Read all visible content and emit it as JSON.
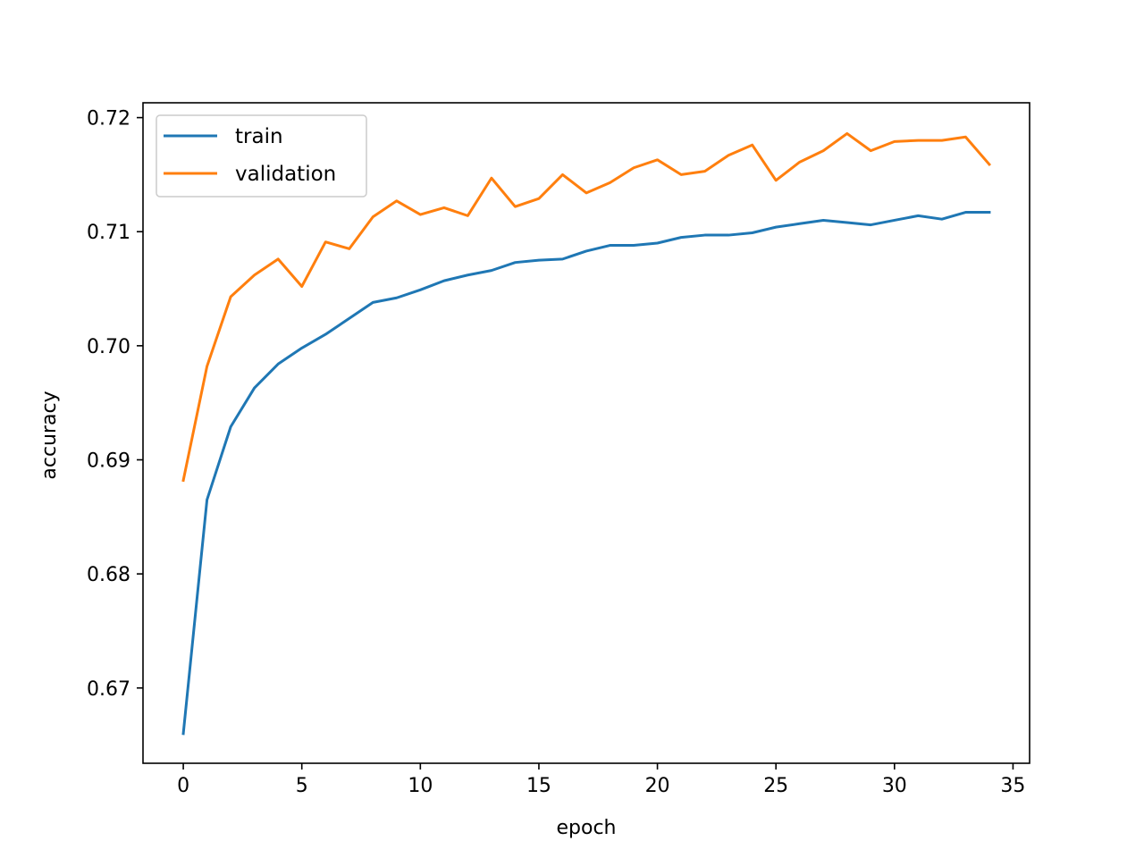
{
  "chart_data": {
    "type": "line",
    "xlabel": "epoch",
    "ylabel": "accuracy",
    "xlim": [
      -1.7,
      35.7
    ],
    "ylim": [
      0.6634,
      0.7213
    ],
    "xticks": [
      0,
      5,
      10,
      15,
      20,
      25,
      30,
      35
    ],
    "xtick_labels": [
      "0",
      "5",
      "10",
      "15",
      "20",
      "25",
      "30",
      "35"
    ],
    "yticks": [
      0.67,
      0.68,
      0.69,
      0.7,
      0.71,
      0.72
    ],
    "ytick_labels": [
      "0.67",
      "0.68",
      "0.69",
      "0.70",
      "0.71",
      "0.72"
    ],
    "grid": false,
    "legend_position": "top-left",
    "x": [
      0,
      1,
      2,
      3,
      4,
      5,
      6,
      7,
      8,
      9,
      10,
      11,
      12,
      13,
      14,
      15,
      16,
      17,
      18,
      19,
      20,
      21,
      22,
      23,
      24,
      25,
      26,
      27,
      28,
      29,
      30,
      31,
      32,
      33,
      34
    ],
    "series": [
      {
        "name": "train",
        "color": "#1f77b4",
        "values": [
          0.666,
          0.6865,
          0.6929,
          0.6963,
          0.6984,
          0.6998,
          0.701,
          0.7024,
          0.7038,
          0.7042,
          0.7049,
          0.7057,
          0.7062,
          0.7066,
          0.7073,
          0.7075,
          0.7076,
          0.7083,
          0.7088,
          0.7088,
          0.709,
          0.7095,
          0.7097,
          0.7097,
          0.7099,
          0.7104,
          0.7107,
          0.711,
          0.7108,
          0.7106,
          0.711,
          0.7114,
          0.7111,
          0.7117,
          0.7117
        ]
      },
      {
        "name": "validation",
        "color": "#ff7f0e",
        "values": [
          0.6882,
          0.6982,
          0.7043,
          0.7062,
          0.7076,
          0.7052,
          0.7091,
          0.7085,
          0.7113,
          0.7127,
          0.7115,
          0.7121,
          0.7114,
          0.7147,
          0.7122,
          0.7129,
          0.715,
          0.7134,
          0.7143,
          0.7156,
          0.7163,
          0.715,
          0.7153,
          0.7167,
          0.7176,
          0.7145,
          0.7161,
          0.7171,
          0.7186,
          0.7171,
          0.7179,
          0.718,
          0.718,
          0.7183,
          0.7159
        ]
      }
    ]
  }
}
